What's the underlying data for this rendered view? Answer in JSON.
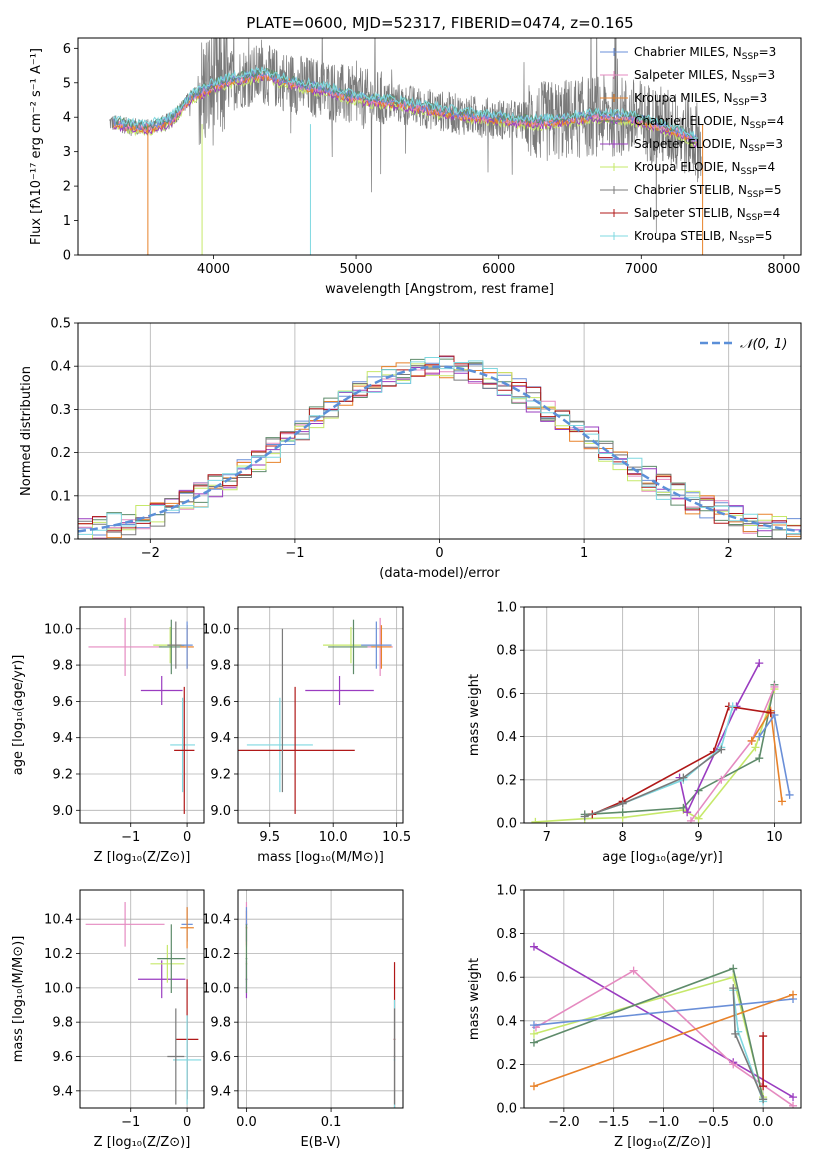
{
  "figure": {
    "title": "PLATE=0600, MJD=52317, FIBERID=0474, z=0.165"
  },
  "colors": {
    "Chabrier MILES": "#6a8fd8",
    "Salpeter MILES": "#e58ac0",
    "Kroupa MILES": "#e8822a",
    "Chabrier ELODIE": "#5e8b6a",
    "Salpeter ELODIE": "#9a3cc0",
    "Kroupa ELODIE": "#c6e86a",
    "Chabrier STELIB": "#7a7a7a",
    "Salpeter STELIB": "#b01818",
    "Kroupa STELIB": "#7fd8e0",
    "gaussian": "#5b8fd8"
  },
  "chart_data": [
    {
      "id": "spectrum",
      "type": "line",
      "title": "PLATE=0600, MJD=52317, FIBERID=0474, z=0.165",
      "xlabel": "wavelength [Angstrom, rest frame]",
      "ylabel": "Flux [fλ10⁻¹⁷ erg cm⁻² s⁻¹ A⁻¹]",
      "xlim": [
        3050,
        8120
      ],
      "ylim": [
        0,
        6.3
      ],
      "xticks": [
        "4000",
        "5000",
        "6000",
        "7000",
        "8000"
      ],
      "yticks": [
        "0",
        "1",
        "2",
        "3",
        "4",
        "5",
        "6"
      ],
      "legend_position": "top-right",
      "legend": [
        {
          "label": "Chabrier MILES, N",
          "sub": "SSP",
          "suffix": "=3"
        },
        {
          "label": "Salpeter MILES, N",
          "sub": "SSP",
          "suffix": "=3"
        },
        {
          "label": "Kroupa MILES, N",
          "sub": "SSP",
          "suffix": "=3"
        },
        {
          "label": "Chabrier ELODIE, N",
          "sub": "SSP",
          "suffix": "=4"
        },
        {
          "label": "Salpeter ELODIE, N",
          "sub": "SSP",
          "suffix": "=3"
        },
        {
          "label": "Kroupa ELODIE, N",
          "sub": "SSP",
          "suffix": "=4"
        },
        {
          "label": "Chabrier STELIB, N",
          "sub": "SSP",
          "suffix": "=5"
        },
        {
          "label": "Salpeter STELIB, N",
          "sub": "SSP",
          "suffix": "=4"
        },
        {
          "label": "Kroupa STELIB, N",
          "sub": "SSP",
          "suffix": "=5"
        }
      ],
      "continuum": {
        "x": [
          3270,
          3400,
          3550,
          3700,
          3850,
          3950,
          4050,
          4200,
          4350,
          4500,
          4650,
          4800,
          4950,
          5100,
          5300,
          5500,
          5700,
          5900,
          6100,
          6300,
          6500,
          6700,
          6900,
          7100,
          7300,
          7400
        ],
        "y": [
          3.85,
          3.75,
          3.7,
          3.9,
          4.6,
          4.8,
          5.0,
          5.15,
          5.25,
          5.05,
          4.9,
          4.8,
          4.6,
          4.5,
          4.4,
          4.25,
          4.1,
          4.0,
          3.9,
          3.85,
          3.95,
          4.05,
          4.0,
          3.8,
          3.5,
          3.3
        ]
      }
    },
    {
      "id": "residuals",
      "type": "line",
      "xlabel": "(data-model)/error",
      "ylabel": "Normed distribution",
      "xlim": [
        -2.5,
        2.5
      ],
      "ylim": [
        0,
        0.5
      ],
      "xticks": [
        "−2",
        "−1",
        "0",
        "1",
        "2"
      ],
      "yticks": [
        "0.0",
        "0.1",
        "0.2",
        "0.3",
        "0.4",
        "0.5"
      ],
      "legend_position": "top-right",
      "legend": [
        {
          "label": "𝒩(0, 1)"
        }
      ],
      "gaussian": {
        "mean": 0,
        "sigma": 1
      }
    },
    {
      "id": "age-vs-z",
      "type": "scatter",
      "xlabel": "Z [log₁₀(Z/Z⊙)]",
      "ylabel": "age  [log₁₀(age/yr)]",
      "xlim": [
        -1.9,
        0.3
      ],
      "ylim": [
        8.93,
        10.12
      ],
      "xticks": [
        "−1",
        "0"
      ],
      "yticks": [
        "9.0",
        "9.2",
        "9.4",
        "9.6",
        "9.8",
        "10.0"
      ],
      "points": [
        {
          "series": "Salpeter MILES",
          "x": -1.1,
          "y": 9.9,
          "xerr": 0.65,
          "yerr": 0.16
        },
        {
          "series": "Salpeter ELODIE",
          "x": -0.45,
          "y": 9.66,
          "xerr": 0.37,
          "yerr": 0.08
        },
        {
          "series": "Kroupa ELODIE",
          "x": -0.3,
          "y": 9.91,
          "xerr": 0.3,
          "yerr": 0.1
        },
        {
          "series": "Chabrier ELODIE",
          "x": -0.28,
          "y": 9.9,
          "xerr": 0.22,
          "yerr": 0.15
        },
        {
          "series": "Chabrier STELIB",
          "x": -0.2,
          "y": 9.91,
          "xerr": 0.15,
          "yerr": 0.13
        },
        {
          "series": "Kroupa MILES",
          "x": 0.0,
          "y": 9.9,
          "xerr": 0.12,
          "yerr": 0.12
        },
        {
          "series": "Chabrier MILES",
          "x": 0.0,
          "y": 9.91,
          "xerr": 0.1,
          "yerr": 0.13
        },
        {
          "series": "Kroupa STELIB",
          "x": -0.08,
          "y": 9.36,
          "xerr": 0.22,
          "yerr": 0.26
        },
        {
          "series": "Salpeter STELIB",
          "x": -0.05,
          "y": 9.33,
          "xerr": 0.18,
          "yerr": 0.35
        }
      ]
    },
    {
      "id": "age-vs-mass",
      "type": "scatter",
      "xlabel": "mass [log₁₀(M/M⊙)]",
      "ylabel": "",
      "xlim": [
        9.25,
        10.55
      ],
      "ylim": [
        8.93,
        10.12
      ],
      "xticks": [
        "9.5",
        "10.0",
        "10.5"
      ],
      "yticks": [
        "9.0",
        "9.2",
        "9.4",
        "9.6",
        "9.8",
        "10.0"
      ],
      "points": [
        {
          "series": "Salpeter ELODIE",
          "x": 10.05,
          "y": 9.66,
          "xerr": 0.27,
          "yerr": 0.08
        },
        {
          "series": "Kroupa ELODIE",
          "x": 10.14,
          "y": 9.91,
          "xerr": 0.22,
          "yerr": 0.1
        },
        {
          "series": "Chabrier ELODIE",
          "x": 10.16,
          "y": 9.9,
          "xerr": 0.2,
          "yerr": 0.15
        },
        {
          "series": "Salpeter MILES",
          "x": 10.37,
          "y": 9.9,
          "xerr": 0.1,
          "yerr": 0.16
        },
        {
          "series": "Kroupa MILES",
          "x": 10.38,
          "y": 9.9,
          "xerr": 0.08,
          "yerr": 0.12
        },
        {
          "series": "Chabrier MILES",
          "x": 10.34,
          "y": 9.91,
          "xerr": 0.12,
          "yerr": 0.13
        },
        {
          "series": "Kroupa STELIB",
          "x": 9.58,
          "y": 9.36,
          "xerr": 0.26,
          "yerr": 0.26
        },
        {
          "series": "Salpeter STELIB",
          "x": 9.7,
          "y": 9.33,
          "xerr": 0.47,
          "yerr": 0.35
        },
        {
          "series": "Chabrier STELIB",
          "x": 9.6,
          "y": 9.55,
          "xerr": 0.0,
          "yerr": 0.45
        }
      ]
    },
    {
      "id": "weight-vs-age",
      "type": "line",
      "xlabel": "age  [log₁₀(age/yr)]",
      "ylabel": "mass weight",
      "xlim": [
        6.7,
        10.35
      ],
      "ylim": [
        0,
        1.0
      ],
      "xticks": [
        "7",
        "8",
        "9",
        "10"
      ],
      "yticks": [
        "0.0",
        "0.2",
        "0.4",
        "0.6",
        "0.8",
        "1.0"
      ],
      "series": [
        {
          "series": "Kroupa ELODIE",
          "x": [
            6.85,
            7.5,
            8.0,
            8.8,
            9.0,
            9.75,
            10.0
          ],
          "y": [
            0.005,
            0.02,
            0.025,
            0.06,
            0.02,
            0.35,
            0.62
          ]
        },
        {
          "series": "Chabrier ELODIE",
          "x": [
            7.5,
            8.0,
            8.8,
            9.0,
            9.8,
            10.0
          ],
          "y": [
            0.04,
            0.05,
            0.07,
            0.15,
            0.3,
            0.64
          ]
        },
        {
          "series": "Salpeter MILES",
          "x": [
            8.9,
            9.3,
            9.7,
            10.0
          ],
          "y": [
            0.01,
            0.2,
            0.38,
            0.63
          ]
        },
        {
          "series": "Kroupa MILES",
          "x": [
            9.7,
            9.95,
            10.1
          ],
          "y": [
            0.38,
            0.52,
            0.1
          ]
        },
        {
          "series": "Chabrier MILES",
          "x": [
            9.8,
            10.0,
            10.2
          ],
          "y": [
            0.4,
            0.5,
            0.13
          ]
        },
        {
          "series": "Salpeter ELODIE",
          "x": [
            8.75,
            8.85,
            9.5,
            9.8
          ],
          "y": [
            0.21,
            0.05,
            0.54,
            0.74
          ]
        },
        {
          "series": "Salpeter STELIB",
          "x": [
            7.6,
            8.0,
            9.2,
            9.4,
            9.95
          ],
          "y": [
            0.04,
            0.1,
            0.33,
            0.54,
            0.51
          ]
        },
        {
          "series": "Kroupa STELIB",
          "x": [
            7.5,
            8.0,
            8.8,
            9.3,
            9.45
          ],
          "y": [
            0.03,
            0.09,
            0.2,
            0.35,
            0.54
          ]
        },
        {
          "series": "Chabrier STELIB",
          "x": [
            7.5,
            8.0,
            8.8,
            9.3
          ],
          "y": [
            0.03,
            0.09,
            0.21,
            0.34
          ]
        }
      ]
    },
    {
      "id": "mass-vs-z",
      "type": "scatter",
      "xlabel": "Z [log₁₀(Z/Z⊙)]",
      "ylabel": "mass [log₁₀(M/M⊙)]",
      "xlim": [
        -1.9,
        0.3
      ],
      "ylim": [
        9.3,
        10.57
      ],
      "xticks": [
        "−1",
        "0"
      ],
      "yticks": [
        "9.4",
        "9.6",
        "9.8",
        "10.0",
        "10.2",
        "10.4"
      ],
      "points": [
        {
          "series": "Salpeter MILES",
          "x": -1.1,
          "y": 10.37,
          "xerr": 0.7,
          "yerr": 0.13
        },
        {
          "series": "Salpeter ELODIE",
          "x": -0.45,
          "y": 10.05,
          "xerr": 0.42,
          "yerr": 0.11
        },
        {
          "series": "Kroupa ELODIE",
          "x": -0.35,
          "y": 10.14,
          "xerr": 0.3,
          "yerr": 0.11
        },
        {
          "series": "Chabrier ELODIE",
          "x": -0.28,
          "y": 10.17,
          "xerr": 0.25,
          "yerr": 0.2
        },
        {
          "series": "Chabrier MILES",
          "x": 0.0,
          "y": 10.37,
          "xerr": 0.1,
          "yerr": 0.1
        },
        {
          "series": "Kroupa MILES",
          "x": 0.0,
          "y": 10.35,
          "xerr": 0.12,
          "yerr": 0.12
        },
        {
          "series": "Salpeter STELIB",
          "x": 0.0,
          "y": 9.7,
          "xerr": 0.2,
          "yerr": 0.35
        },
        {
          "series": "Kroupa STELIB",
          "x": 0.0,
          "y": 9.58,
          "xerr": 0.25,
          "yerr": 0.26
        },
        {
          "series": "Chabrier STELIB",
          "x": -0.2,
          "y": 9.6,
          "xerr": 0.15,
          "yerr": 0.28
        }
      ]
    },
    {
      "id": "mass-vs-ebv",
      "type": "scatter",
      "xlabel": "E(B-V)",
      "ylabel": "",
      "xlim": [
        -0.01,
        0.185
      ],
      "ylim": [
        9.3,
        10.57
      ],
      "xticks": [
        "0.0",
        "0.1"
      ],
      "yticks": [
        "9.4",
        "9.6",
        "9.8",
        "10.0",
        "10.2",
        "10.4"
      ],
      "points": [
        {
          "series": "Salpeter MILES",
          "x": 0.0,
          "y": 10.37,
          "xerr": 0.001,
          "yerr": 0.13
        },
        {
          "series": "Kroupa MILES",
          "x": 0.0,
          "y": 10.35,
          "xerr": 0.001,
          "yerr": 0.1
        },
        {
          "series": "Chabrier MILES",
          "x": 0.0,
          "y": 10.37,
          "xerr": 0.001,
          "yerr": 0.1
        },
        {
          "series": "Kroupa ELODIE",
          "x": 0.0,
          "y": 10.14,
          "xerr": 0.001,
          "yerr": 0.11
        },
        {
          "series": "Salpeter ELODIE",
          "x": 0.0,
          "y": 10.05,
          "xerr": 0.001,
          "yerr": 0.11
        },
        {
          "series": "Chabrier ELODIE",
          "x": 0.0,
          "y": 10.17,
          "xerr": 0.001,
          "yerr": 0.2
        },
        {
          "series": "Salpeter STELIB",
          "x": 0.175,
          "y": 9.7,
          "xerr": 0.001,
          "yerr": 0.45
        },
        {
          "series": "Kroupa STELIB",
          "x": 0.175,
          "y": 9.58,
          "xerr": 0.001,
          "yerr": 0.35
        },
        {
          "series": "Chabrier STELIB",
          "x": 0.175,
          "y": 9.6,
          "xerr": 0.001,
          "yerr": 0.28
        }
      ]
    },
    {
      "id": "weight-vs-z",
      "type": "line",
      "xlabel": "Z [log₁₀(Z/Z⊙)]",
      "ylabel": "mass weight",
      "xlim": [
        -2.4,
        0.38
      ],
      "ylim": [
        0,
        1.0
      ],
      "xticks": [
        "−2.0",
        "−1.5",
        "−1.0",
        "−0.5",
        "0.0"
      ],
      "yticks": [
        "0.0",
        "0.2",
        "0.4",
        "0.6",
        "0.8",
        "1.0"
      ],
      "series": [
        {
          "series": "Salpeter ELODIE",
          "x": [
            -2.3,
            -0.3,
            0.3
          ],
          "y": [
            0.74,
            0.21,
            0.05
          ]
        },
        {
          "series": "Salpeter MILES",
          "x": [
            -2.28,
            -1.3,
            -0.3,
            0.3
          ],
          "y": [
            0.37,
            0.63,
            0.2,
            0.01
          ]
        },
        {
          "series": "Kroupa ELODIE",
          "x": [
            -2.3,
            -0.3,
            0.0
          ],
          "y": [
            0.34,
            0.6,
            0.05
          ]
        },
        {
          "series": "Chabrier ELODIE",
          "x": [
            -2.3,
            -0.3,
            0.0
          ],
          "y": [
            0.3,
            0.64,
            0.04
          ]
        },
        {
          "series": "Chabrier MILES",
          "x": [
            -2.3,
            0.3
          ],
          "y": [
            0.38,
            0.5
          ]
        },
        {
          "series": "Kroupa MILES",
          "x": [
            -2.3,
            0.3
          ],
          "y": [
            0.1,
            0.52
          ]
        },
        {
          "series": "Salpeter STELIB",
          "x": [
            0.0,
            0.0
          ],
          "y": [
            0.33,
            0.1
          ]
        },
        {
          "series": "Kroupa STELIB",
          "x": [
            -0.3,
            -0.25,
            0.0
          ],
          "y": [
            0.54,
            0.35,
            0.03
          ]
        },
        {
          "series": "Chabrier STELIB",
          "x": [
            -0.3,
            -0.28,
            0.0
          ],
          "y": [
            0.55,
            0.34,
            0.04
          ]
        }
      ]
    }
  ]
}
